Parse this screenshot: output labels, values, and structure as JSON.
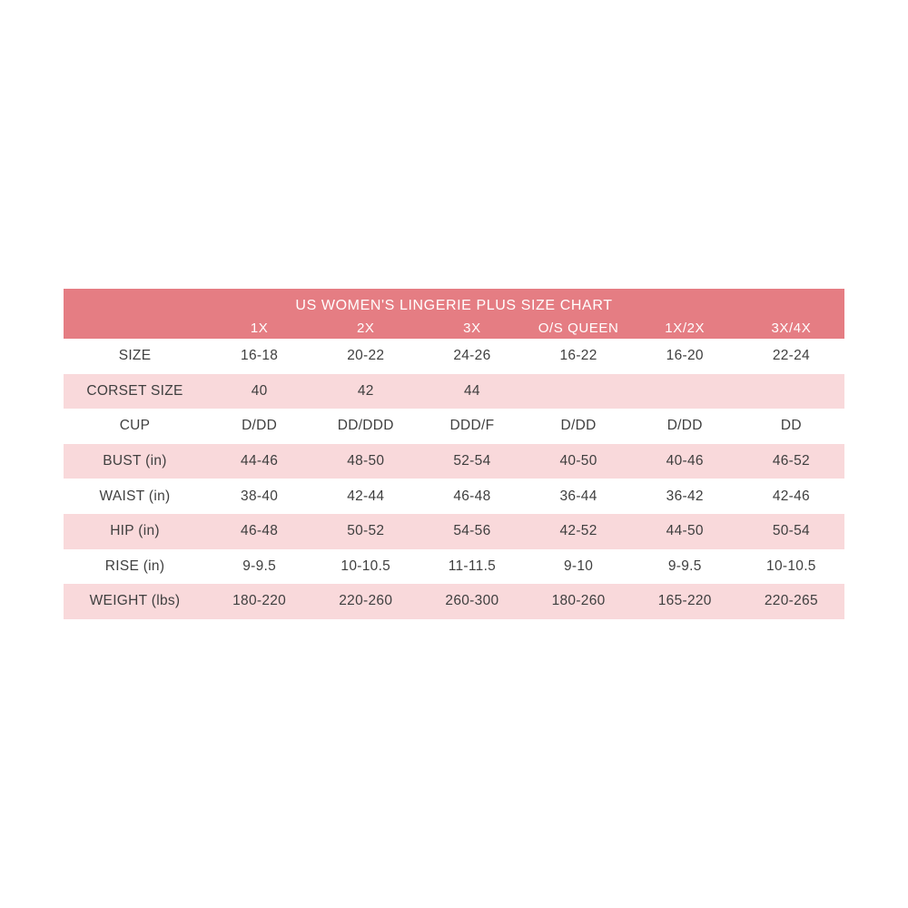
{
  "chart_data": {
    "type": "table",
    "title": "US WOMEN'S LINGERIE PLUS SIZE CHART",
    "columns": [
      "",
      "1X",
      "2X",
      "3X",
      "O/S QUEEN",
      "1X/2X",
      "3X/4X"
    ],
    "rows": [
      {
        "label": "SIZE",
        "values": [
          "16-18",
          "20-22",
          "24-26",
          "16-22",
          "16-20",
          "22-24"
        ]
      },
      {
        "label": "CORSET SIZE",
        "values": [
          "40",
          "42",
          "44",
          "",
          "",
          ""
        ]
      },
      {
        "label": "CUP",
        "values": [
          "D/DD",
          "DD/DDD",
          "DDD/F",
          "D/DD",
          "D/DD",
          "DD"
        ]
      },
      {
        "label": "BUST (in)",
        "values": [
          "44-46",
          "48-50",
          "52-54",
          "40-50",
          "40-46",
          "46-52"
        ]
      },
      {
        "label": "WAIST (in)",
        "values": [
          "38-40",
          "42-44",
          "46-48",
          "36-44",
          "36-42",
          "42-46"
        ]
      },
      {
        "label": "HIP (in)",
        "values": [
          "46-48",
          "50-52",
          "54-56",
          "42-52",
          "44-50",
          "50-54"
        ]
      },
      {
        "label": "RISE (in)",
        "values": [
          "9-9.5",
          "10-10.5",
          "11-11.5",
          "9-10",
          "9-9.5",
          "10-10.5"
        ]
      },
      {
        "label": "WEIGHT (lbs)",
        "values": [
          "180-220",
          "220-260",
          "260-300",
          "180-260",
          "165-220",
          "220-265"
        ]
      }
    ],
    "layout_hints": {
      "row_striping": "white/pink alternating starting with white",
      "header_text_color": "#ffffff"
    },
    "colors": {
      "header_background": "#e57d83",
      "striped_row_background": "#f9d9db",
      "plain_row_background": "#ffffff",
      "body_text": "#3f3f3f",
      "header_text": "#ffffff"
    }
  }
}
